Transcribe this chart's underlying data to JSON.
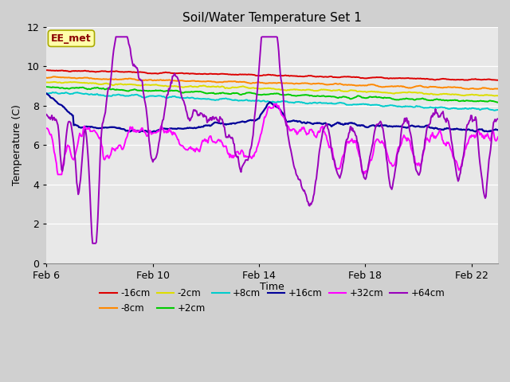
{
  "title": "Soil/Water Temperature Set 1",
  "xlabel": "Time",
  "ylabel": "Temperature (C)",
  "ylim": [
    0,
    12
  ],
  "yticks": [
    0,
    2,
    4,
    6,
    8,
    10,
    12
  ],
  "xlim": [
    0,
    17
  ],
  "xtick_positions": [
    0,
    4,
    8,
    12,
    16
  ],
  "xtick_labels": [
    "Feb 6",
    "Feb 10",
    "Feb 14",
    "Feb 18",
    "Feb 22"
  ],
  "background_color": "#d0d0d0",
  "plot_bg_color": "#e8e8e8",
  "annotation_text": "EE_met",
  "annotation_color": "#8b0000",
  "annotation_box_color": "#ffffaa",
  "annotation_box_edge": "#aaaa00",
  "series": [
    {
      "label": "-16cm",
      "color": "#dd0000",
      "lw": 1.4
    },
    {
      "label": "-8cm",
      "color": "#ff8800",
      "lw": 1.4
    },
    {
      "label": "-2cm",
      "color": "#dddd00",
      "lw": 1.4
    },
    {
      "label": "+2cm",
      "color": "#00cc00",
      "lw": 1.4
    },
    {
      "label": "+8cm",
      "color": "#00cccc",
      "lw": 1.4
    },
    {
      "label": "+16cm",
      "color": "#000099",
      "lw": 1.6
    },
    {
      "label": "+32cm",
      "color": "#ff00ff",
      "lw": 1.4
    },
    {
      "label": "+64cm",
      "color": "#9900bb",
      "lw": 1.4
    }
  ],
  "n_points": 600,
  "time_end": 17.0
}
